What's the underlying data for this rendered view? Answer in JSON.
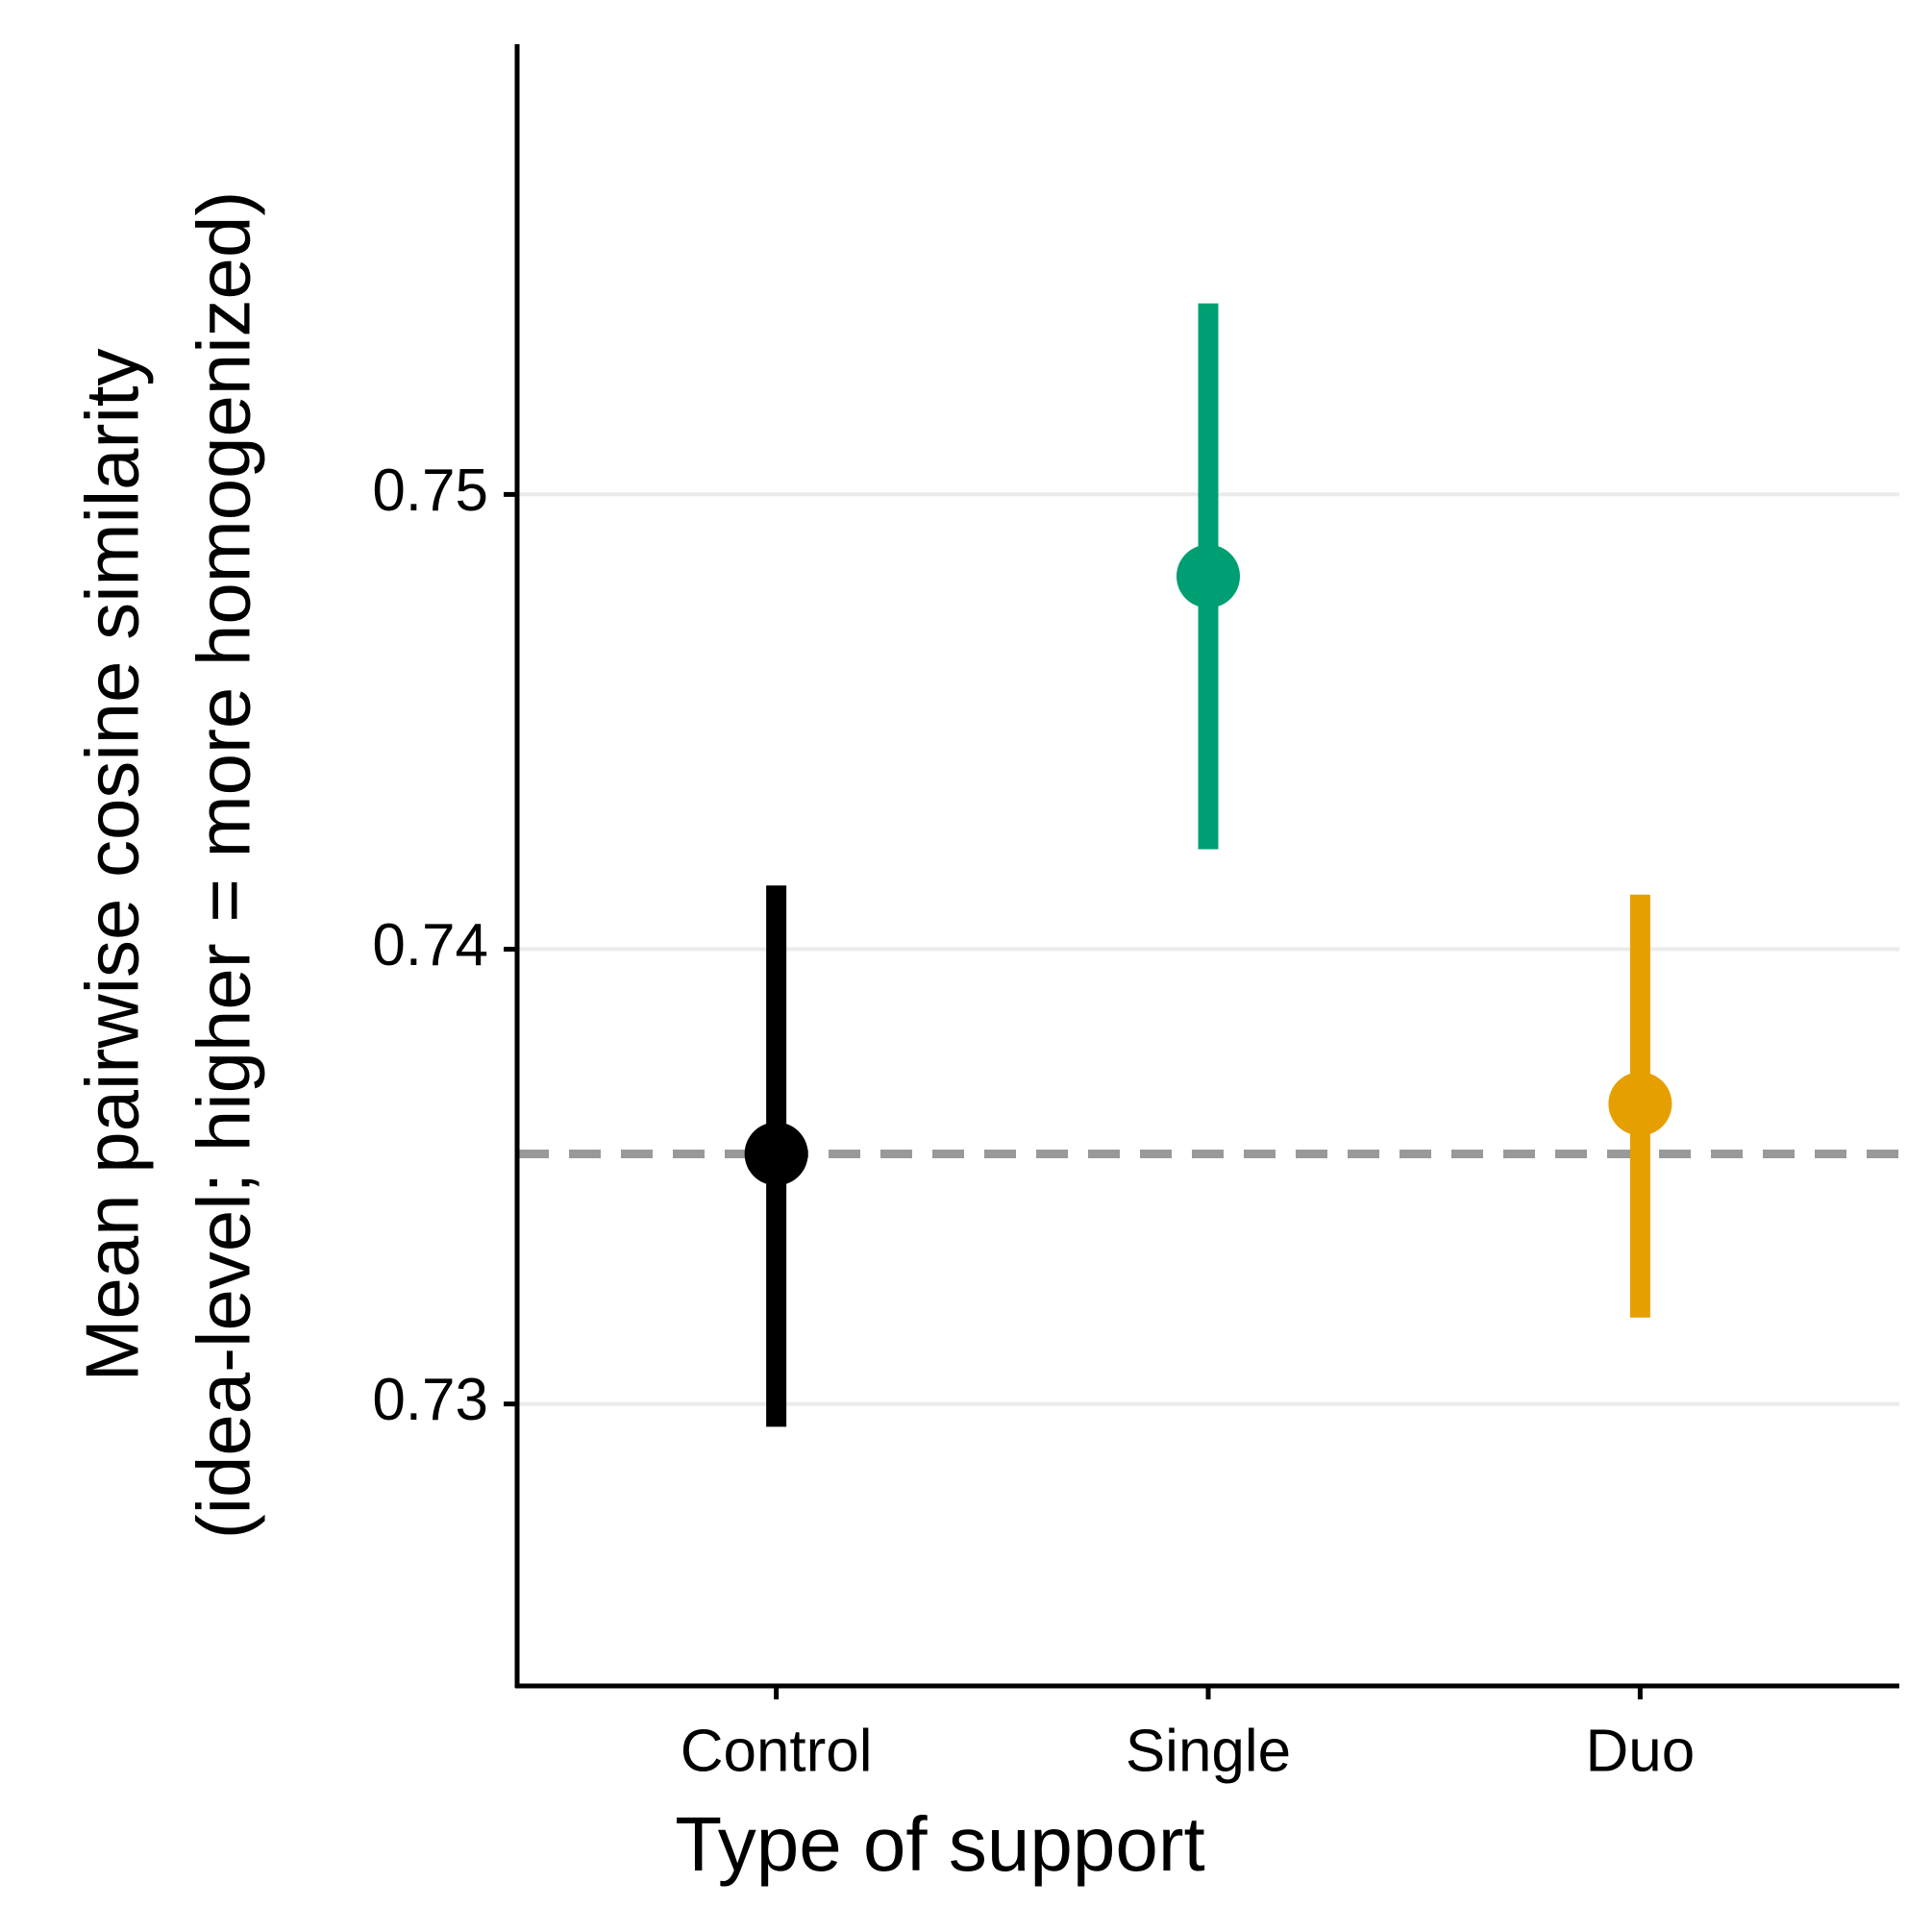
{
  "chart_data": {
    "type": "pointrange",
    "x_label": "Type of support",
    "y_label": [
      "Mean pairwise cosine similarity",
      "(idea-level; higher = more homogenized)"
    ],
    "categories": [
      "Control",
      "Single",
      "Duo"
    ],
    "values": [
      0.7355,
      0.7482,
      0.7366
    ],
    "lower": [
      0.7295,
      0.7422,
      0.7319
    ],
    "upper": [
      0.7414,
      0.7542,
      0.7412
    ],
    "colors": [
      "#000000",
      "#009E73",
      "#E69F00"
    ],
    "reference_line": 0.7355,
    "reference_color": "#999999",
    "ylim": [
      0.7238,
      0.7599
    ],
    "yticks": [
      0.73,
      0.74,
      0.75
    ],
    "grid": true
  }
}
